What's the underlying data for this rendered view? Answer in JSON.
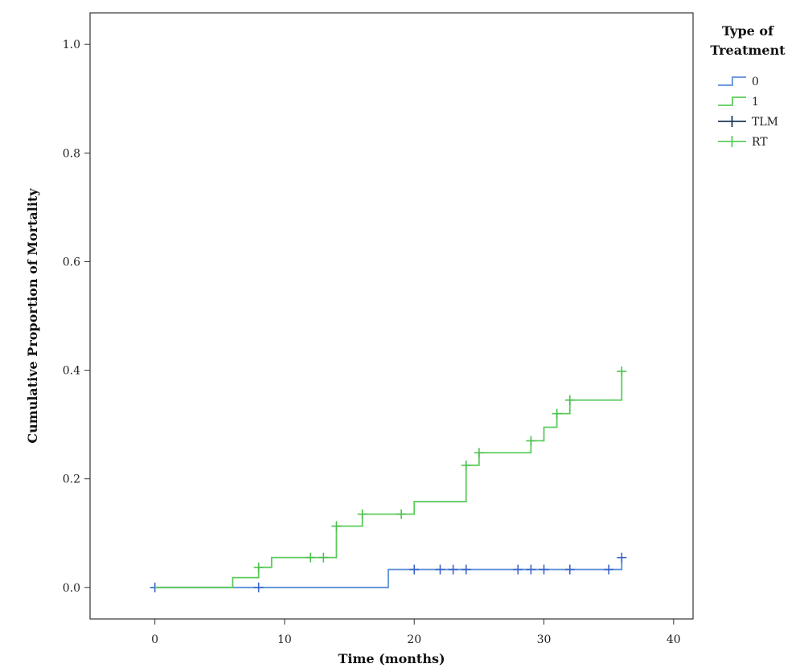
{
  "chart_data": {
    "type": "line",
    "xlabel": "Time (months)",
    "ylabel": "Cumulative Proportion of Mortality",
    "xlim": [
      -5,
      41.5
    ],
    "ylim": [
      -0.058,
      1.058
    ],
    "xticks": [
      0,
      10,
      20,
      30,
      40
    ],
    "yticks": [
      0.0,
      0.2,
      0.4,
      0.6,
      0.8,
      1.0
    ],
    "ytick_labels": [
      "0.0",
      "0.2",
      "0.4",
      "0.6",
      "0.8",
      "1.0"
    ],
    "grid": false,
    "legend": {
      "title_line1": "Type of",
      "title_line2": "Treatment",
      "placement": "right",
      "entries": [
        {
          "label": "0",
          "kind": "step",
          "color": "#5b8fd6"
        },
        {
          "label": "1",
          "kind": "step",
          "color": "#5ccc5c"
        },
        {
          "label": "TLM",
          "kind": "censor",
          "color": "#1e3a5a"
        },
        {
          "label": "RT",
          "kind": "censor",
          "color": "#5ccc5c"
        }
      ]
    },
    "series": [
      {
        "name": "0",
        "color": "#5b8fd6",
        "censor_color": "#3a64c8",
        "steps": [
          [
            0,
            0.0
          ],
          [
            18,
            0.033
          ],
          [
            36,
            0.055
          ]
        ],
        "end_x": 36,
        "censored": [
          [
            0,
            0.0
          ],
          [
            8,
            0.0
          ],
          [
            20,
            0.033
          ],
          [
            22,
            0.033
          ],
          [
            23,
            0.033
          ],
          [
            24,
            0.033
          ],
          [
            28,
            0.033
          ],
          [
            29,
            0.033
          ],
          [
            30,
            0.033
          ],
          [
            32,
            0.033
          ],
          [
            35,
            0.033
          ],
          [
            36,
            0.055
          ]
        ]
      },
      {
        "name": "1",
        "color": "#5ccc5c",
        "censor_color": "#4cc04c",
        "steps": [
          [
            0,
            0.0
          ],
          [
            6,
            0.018
          ],
          [
            8,
            0.037
          ],
          [
            9,
            0.055
          ],
          [
            14,
            0.113
          ],
          [
            16,
            0.135
          ],
          [
            20,
            0.158
          ],
          [
            24,
            0.225
          ],
          [
            25,
            0.248
          ],
          [
            29,
            0.27
          ],
          [
            30,
            0.295
          ],
          [
            31,
            0.32
          ],
          [
            32,
            0.345
          ],
          [
            36,
            0.398
          ]
        ],
        "end_x": 36,
        "censored": [
          [
            8,
            0.037
          ],
          [
            12,
            0.055
          ],
          [
            13,
            0.055
          ],
          [
            14,
            0.113
          ],
          [
            16,
            0.135
          ],
          [
            19,
            0.135
          ],
          [
            24,
            0.225
          ],
          [
            25,
            0.248
          ],
          [
            29,
            0.27
          ],
          [
            31,
            0.32
          ],
          [
            32,
            0.345
          ],
          [
            36,
            0.398
          ]
        ]
      }
    ]
  }
}
